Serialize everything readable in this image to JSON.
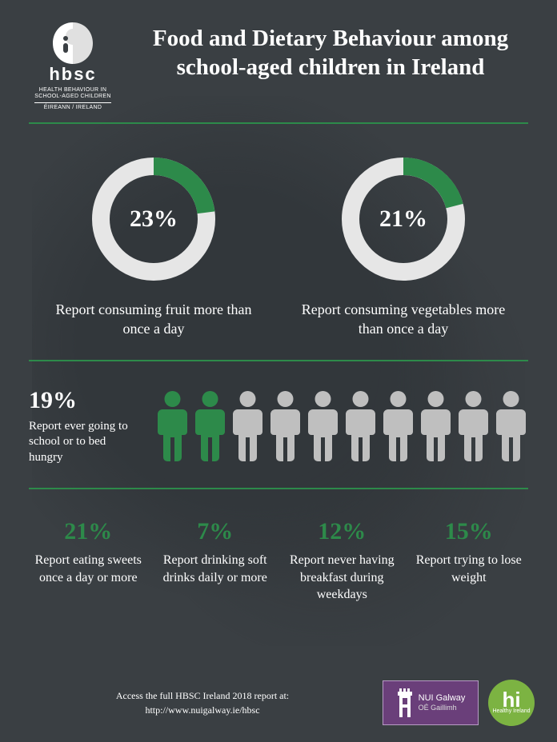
{
  "colors": {
    "background": "#3a3f43",
    "accent_green": "#2d8a4a",
    "donut_track": "#e6e6e6",
    "donut_fill": "#2d8a4a",
    "person_inactive": "#bfbfbf",
    "person_active": "#2d8a4a",
    "text_white": "#ffffff",
    "nui_purple": "#6a3f7a",
    "hi_green": "#7cb342"
  },
  "header": {
    "logo_wordmark": "hbsc",
    "logo_sub1": "HEALTH BEHAVIOUR IN",
    "logo_sub2": "SCHOOL-AGED CHILDREN",
    "logo_sub3": "ÉIREANN / IRELAND",
    "title": "Food and Dietary Behaviour among school-aged children in Ireland"
  },
  "donuts": [
    {
      "percent_label": "23%",
      "percent_value": 23,
      "caption": "Report consuming fruit more than once a day",
      "ring_thickness": 22,
      "start_angle_deg": 0
    },
    {
      "percent_label": "21%",
      "percent_value": 21,
      "caption": "Report consuming vegetables more than once a day",
      "ring_thickness": 22,
      "start_angle_deg": 0
    }
  ],
  "pictogram": {
    "percent_label": "19%",
    "caption": "Report ever going to school or to bed hungry",
    "total_figures": 10,
    "active_figures": 2
  },
  "stats": [
    {
      "percent": "21%",
      "caption": "Report eating sweets once a day or more"
    },
    {
      "percent": "7%",
      "caption": "Report drinking soft drinks daily or more"
    },
    {
      "percent": "12%",
      "caption": "Report never having breakfast during weekdays"
    },
    {
      "percent": "15%",
      "caption": "Report trying to lose weight"
    }
  ],
  "footer": {
    "access_line1": "Access the full HBSC Ireland 2018 report at:",
    "access_url": "http://www.nuigalway.ie/hbsc",
    "nui_line1": "NUI Galway",
    "nui_line2": "OÉ Gaillimh",
    "hi_text": "hi",
    "hi_sub": "Healthy Ireland"
  }
}
